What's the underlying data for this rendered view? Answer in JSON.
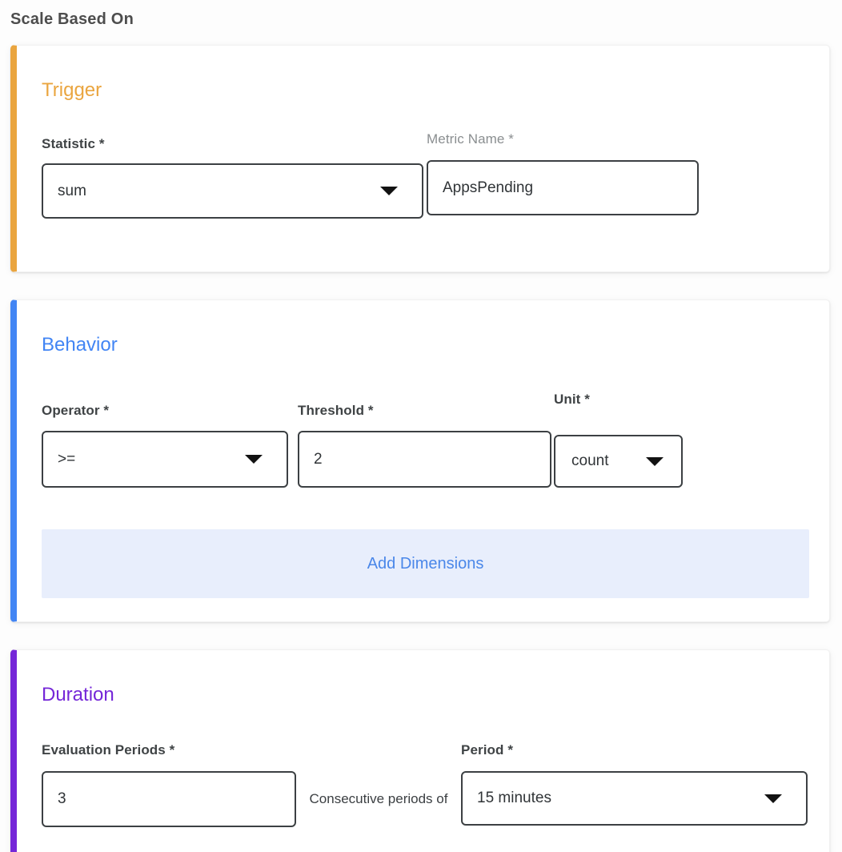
{
  "page": {
    "title": "Scale Based On"
  },
  "colors": {
    "trigger_accent": "#eaa53f",
    "behavior_accent": "#4285f4",
    "duration_accent": "#7527d8",
    "add_dimensions_bg": "#e8eefc",
    "add_dimensions_text": "#4a87e9",
    "input_border": "#3c4043"
  },
  "icons": {
    "dropdown_caret": "triangle-down"
  },
  "trigger": {
    "title": "Trigger",
    "statistic": {
      "label": "Statistic *",
      "value": "sum"
    },
    "metric_name": {
      "label": "Metric Name *",
      "value": "AppsPending"
    }
  },
  "behavior": {
    "title": "Behavior",
    "operator": {
      "label": "Operator *",
      "value": ">="
    },
    "threshold": {
      "label": "Threshold *",
      "value": "2"
    },
    "unit": {
      "label": "Unit *",
      "value": "count"
    },
    "add_dimensions_label": "Add Dimensions"
  },
  "duration": {
    "title": "Duration",
    "evaluation_periods": {
      "label": "Evaluation Periods *",
      "value": "3"
    },
    "consecutive_text": "Consecutive periods of",
    "period": {
      "label": "Period *",
      "value": "15 minutes"
    }
  }
}
